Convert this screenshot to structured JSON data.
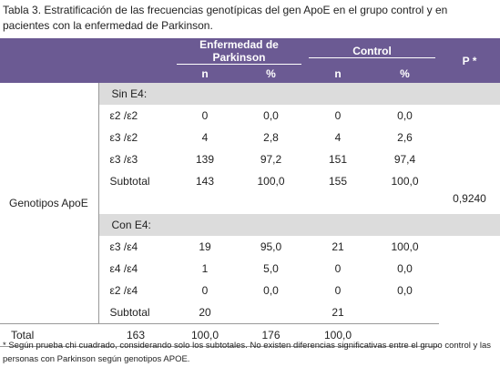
{
  "caption": [
    "Tabla 3. Estratificación de las frecuencias genotípicas del gen ApoE en el grupo control y en",
    "pacientes con la enfermedad de Parkinson."
  ],
  "header": {
    "groups": [
      "Enfermedad de Parkinson",
      "Control"
    ],
    "sub": [
      "n",
      "%",
      "n",
      "%"
    ],
    "p": "P *"
  },
  "row_group": "Genotipos ApoE",
  "p_value": "0,9240",
  "sections": [
    {
      "label": "Sin E4:",
      "rows": [
        [
          "ε2 /ε2",
          "0",
          "0,0",
          "0",
          "0,0"
        ],
        [
          "ε3 /ε2",
          "4",
          "2,8",
          "4",
          "2,6"
        ],
        [
          "ε3 /ε3",
          "139",
          "97,2",
          "151",
          "97,4"
        ],
        [
          "Subtotal",
          "143",
          "100,0",
          "155",
          "100,0"
        ]
      ]
    },
    {
      "label": "Con E4:",
      "rows": [
        [
          "ε3 /ε4",
          "19",
          "95,0",
          "21",
          "100,0"
        ],
        [
          "ε4 /ε4",
          "1",
          "5,0",
          "0",
          "0,0"
        ],
        [
          "ε2 /ε4",
          "0",
          "0,0",
          "0",
          "0,0"
        ],
        [
          "Subtotal",
          "20",
          null,
          "21",
          null
        ]
      ]
    }
  ],
  "total": [
    "Total",
    "163",
    "100,0",
    "176",
    "100,0"
  ],
  "footnote": "* Según prueba chi cuadrado, considerando solo los subtotales. No existen diferencias significativas entre el grupo control y las personas con Parkinson según genotipos APOE."
}
